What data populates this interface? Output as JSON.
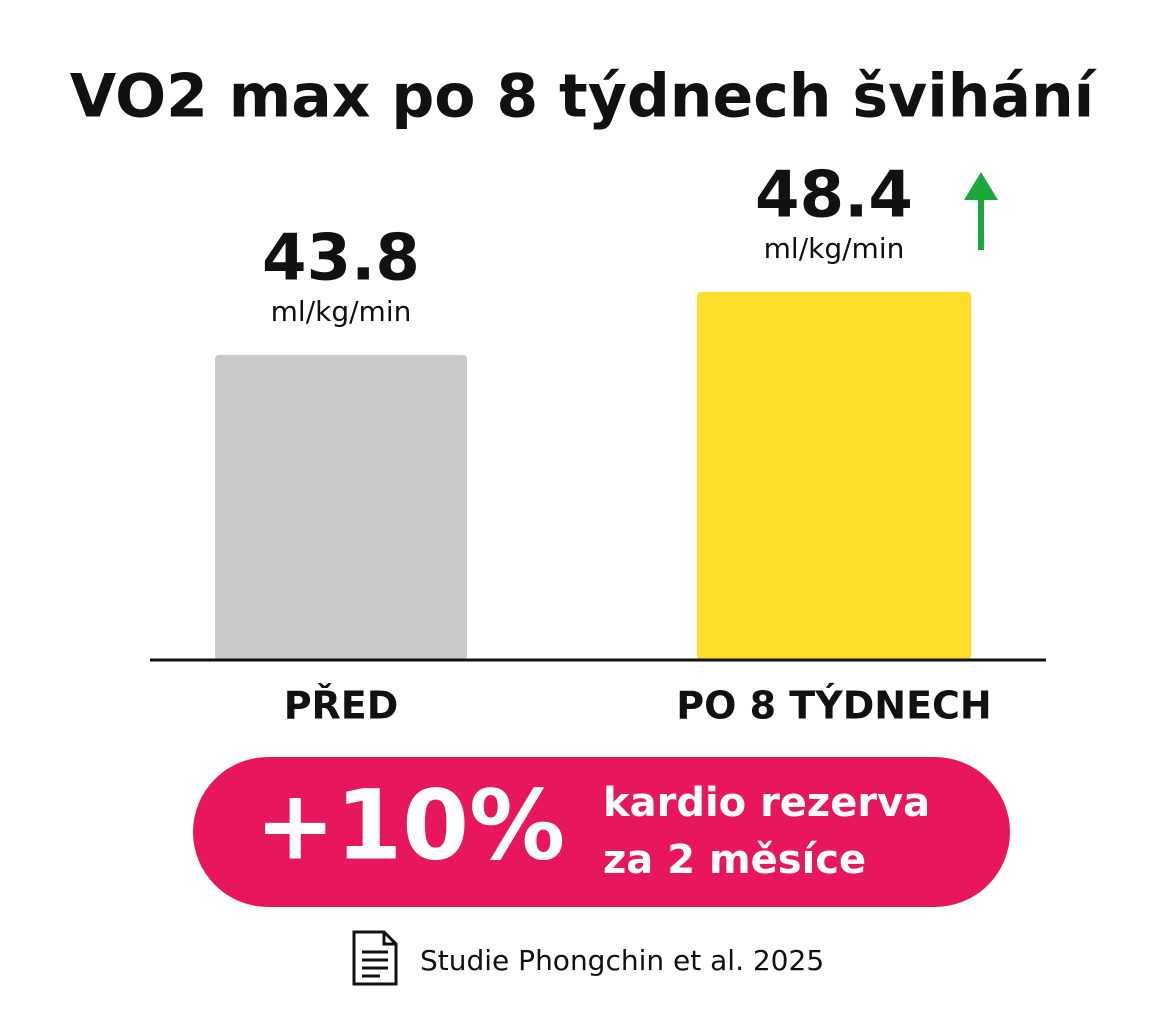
{
  "chart_data": {
    "type": "bar",
    "title": "VO2 max po 8 týdnech švihání",
    "categories": [
      "PŘED",
      "PO 8 TÝDNECH"
    ],
    "values": [
      43.8,
      48.4
    ],
    "unit": "ml/kg/min",
    "colors": [
      "#c8c8c8",
      "#fddf2b"
    ],
    "ylim": [
      21.5,
      50
    ],
    "callout": {
      "value": "+10%",
      "lines": [
        "kardio rezerva",
        "za 2 měsíce"
      ]
    },
    "source": "Studie Phongchin et al. 2025"
  }
}
